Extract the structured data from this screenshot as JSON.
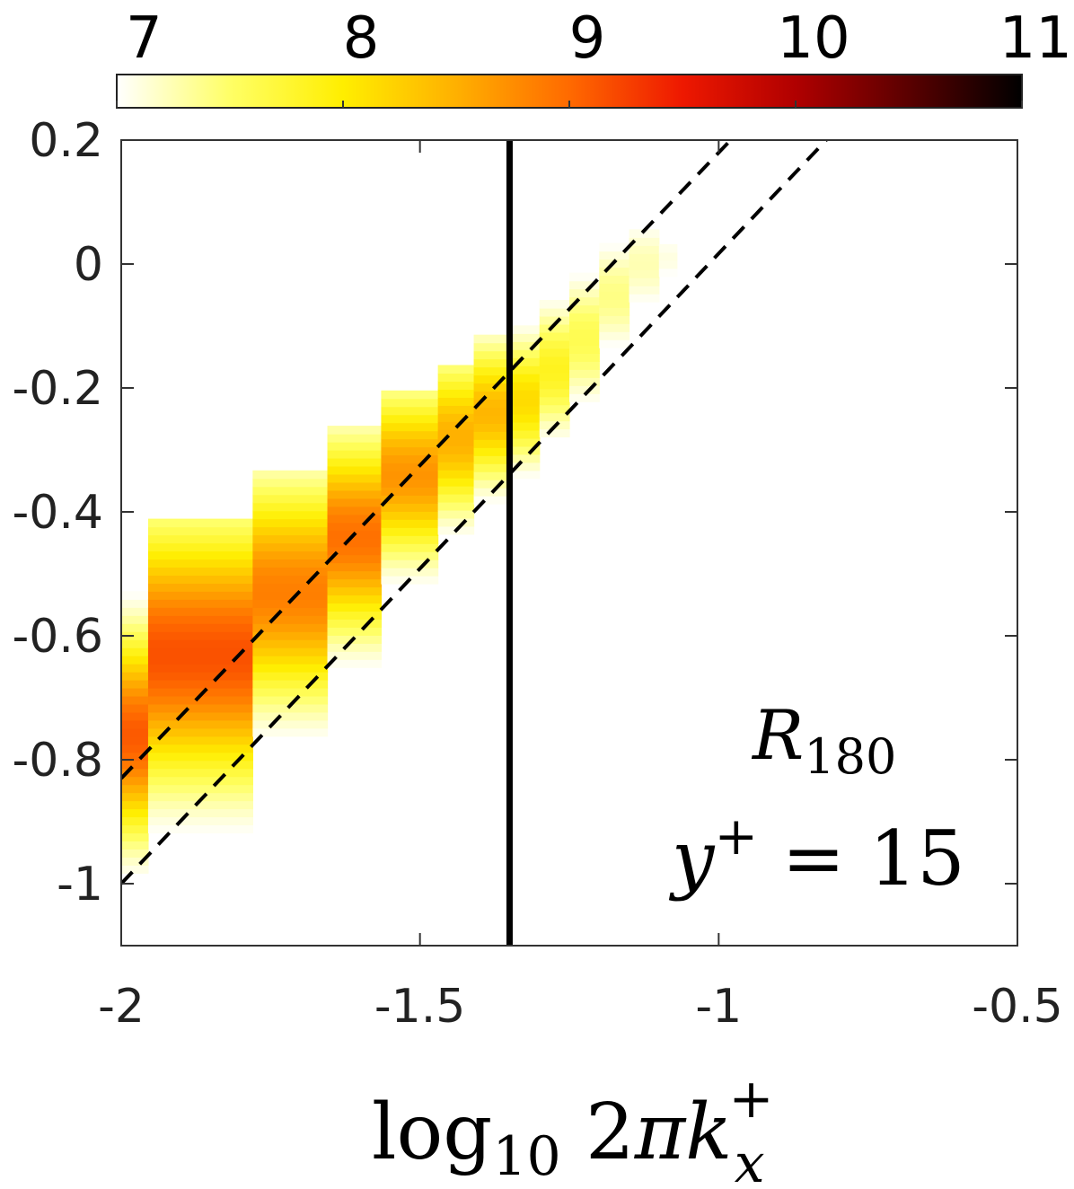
{
  "chart_data": {
    "type": "heatmap",
    "title": "",
    "xlabel": {
      "base": "log",
      "sub1": "10",
      "mid": " 2",
      "pi": "π",
      "k": "k",
      "sup": "+",
      "sub2": "x"
    },
    "ylabel": "",
    "xlim": [
      -2,
      -0.5
    ],
    "ylim": [
      -1.1,
      0.2
    ],
    "x_ticks": [
      -2,
      -1.5,
      -1,
      -0.5
    ],
    "x_tick_labels": [
      "-2",
      "-1.5",
      "-1",
      "-0.5"
    ],
    "y_ticks": [
      -1,
      -0.8,
      -0.6,
      -0.4,
      -0.2,
      0,
      0.2
    ],
    "y_tick_labels": [
      "-1",
      "-0.8",
      "-0.6",
      "-0.4",
      "-0.2",
      "0",
      "0.2"
    ],
    "colorbar": {
      "range": [
        7,
        11
      ],
      "ticks": [
        7,
        8,
        9,
        10,
        11
      ],
      "tick_labels": [
        "7",
        "8",
        "9",
        "10",
        "11"
      ],
      "colors": [
        "#ffffff",
        "#ffff66",
        "#ffee00",
        "#ffb000",
        "#ff6a00",
        "#ee1800",
        "#b00000",
        "#5a0000",
        "#000000"
      ]
    },
    "annotation": {
      "R": "R",
      "R_sub": "180",
      "y": "y",
      "y_sup": "+",
      "eq": " = 15"
    },
    "vertical_line_x": -1.35,
    "dashed_lines": [
      {
        "x": [
          -2,
          -0.98
        ],
        "y": [
          -0.83,
          0.2
        ]
      },
      {
        "x": [
          -2,
          -0.82
        ],
        "y": [
          -1.0,
          0.2
        ]
      }
    ],
    "columns": [
      {
        "x0": -2.0,
        "x1": -1.955,
        "y_bot": -1.1,
        "y_top": -0.5,
        "peak": -0.76,
        "spread": 0.16,
        "max": 9.1
      },
      {
        "x0": -1.955,
        "x1": -1.78,
        "y_bot": -1.1,
        "y_top": -0.41,
        "peak": -0.63,
        "spread": 0.2,
        "max": 9.15
      },
      {
        "x0": -1.78,
        "x1": -1.655,
        "y_bot": -1.1,
        "y_top": -0.33,
        "peak": -0.53,
        "spread": 0.17,
        "max": 8.85
      },
      {
        "x0": -1.655,
        "x1": -1.565,
        "y_bot": -0.95,
        "y_top": -0.26,
        "peak": -0.44,
        "spread": 0.15,
        "max": 8.95
      },
      {
        "x0": -1.565,
        "x1": -1.47,
        "y_bot": -0.75,
        "y_top": -0.21,
        "peak": -0.34,
        "spread": 0.13,
        "max": 8.7
      },
      {
        "x0": -1.47,
        "x1": -1.41,
        "y_bot": -0.67,
        "y_top": -0.16,
        "peak": -0.28,
        "spread": 0.12,
        "max": 8.5
      },
      {
        "x0": -1.41,
        "x1": -1.35,
        "y_bot": -0.53,
        "y_top": -0.11,
        "peak": -0.24,
        "spread": 0.11,
        "max": 8.45
      },
      {
        "x0": -1.35,
        "x1": -1.3,
        "y_bot": -0.45,
        "y_top": -0.07,
        "peak": -0.22,
        "spread": 0.1,
        "max": 8.15
      },
      {
        "x0": -1.3,
        "x1": -1.25,
        "y_bot": -0.37,
        "y_top": -0.02,
        "peak": -0.17,
        "spread": 0.1,
        "max": 7.85
      },
      {
        "x0": -1.25,
        "x1": -1.2,
        "y_bot": -0.3,
        "y_top": 0.02,
        "peak": -0.12,
        "spread": 0.1,
        "max": 7.6
      },
      {
        "x0": -1.2,
        "x1": -1.15,
        "y_bot": -0.2,
        "y_top": 0.05,
        "peak": -0.05,
        "spread": 0.09,
        "max": 7.4
      },
      {
        "x0": -1.15,
        "x1": -1.1,
        "y_bot": -0.1,
        "y_top": 0.07,
        "peak": 0.0,
        "spread": 0.08,
        "max": 7.25
      },
      {
        "x0": -1.1,
        "x1": -1.07,
        "y_bot": -0.02,
        "y_top": 0.04,
        "peak": 0.01,
        "spread": 0.05,
        "max": 7.1
      }
    ]
  }
}
